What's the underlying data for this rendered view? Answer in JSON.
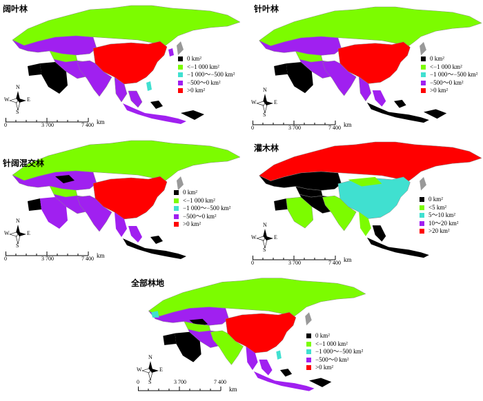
{
  "panels": [
    {
      "title": "阔叶林",
      "legend": [
        {
          "label": "0  km²",
          "color": "#000000"
        },
        {
          "label": "<−1 000 km²",
          "color": "#7CFC00"
        },
        {
          "label": "−1 000～−500  km²",
          "color": "#40E0D0"
        },
        {
          "label": "−500～0  km²",
          "color": "#A020F0"
        },
        {
          "label": ">0  km²",
          "color": "#FF0000"
        }
      ]
    },
    {
      "title": "针叶林",
      "legend": [
        {
          "label": "0  km²",
          "color": "#000000"
        },
        {
          "label": "<−1 000 km²",
          "color": "#7CFC00"
        },
        {
          "label": "−1 000～−500  km²",
          "color": "#40E0D0"
        },
        {
          "label": "−500～0  km²",
          "color": "#A020F0"
        },
        {
          "label": ">0  km²",
          "color": "#FF0000"
        }
      ]
    },
    {
      "title": "针阔混交林",
      "legend": [
        {
          "label": "0  km²",
          "color": "#000000"
        },
        {
          "label": "<−1 000 km²",
          "color": "#7CFC00"
        },
        {
          "label": "−1 000～−500  km²",
          "color": "#40E0D0"
        },
        {
          "label": "−500～0  km²",
          "color": "#A020F0"
        },
        {
          "label": ">0  km²",
          "color": "#FF0000"
        }
      ]
    },
    {
      "title": "灌木林",
      "legend": [
        {
          "label": "0  km²",
          "color": "#000000"
        },
        {
          "label": "<5  km²",
          "color": "#7CFC00"
        },
        {
          "label": "5～10  km²",
          "color": "#40E0D0"
        },
        {
          "label": "10～20  km²",
          "color": "#A020F0"
        },
        {
          "label": ">20  km²",
          "color": "#FF0000"
        }
      ]
    },
    {
      "title": "全部林地",
      "legend": [
        {
          "label": "0  km²",
          "color": "#000000"
        },
        {
          "label": "<−1 000 km²",
          "color": "#7CFC00"
        },
        {
          "label": "−1 000～−500  km²",
          "color": "#40E0D0"
        },
        {
          "label": "−500～0  km²",
          "color": "#A020F0"
        },
        {
          "label": ">0  km²",
          "color": "#FF0000"
        }
      ]
    }
  ],
  "compass": {
    "n": "N",
    "s": "S",
    "w": "W",
    "e": "E"
  },
  "scale": {
    "labels": [
      "0",
      "3 700",
      "7 400"
    ],
    "unit": "km"
  }
}
